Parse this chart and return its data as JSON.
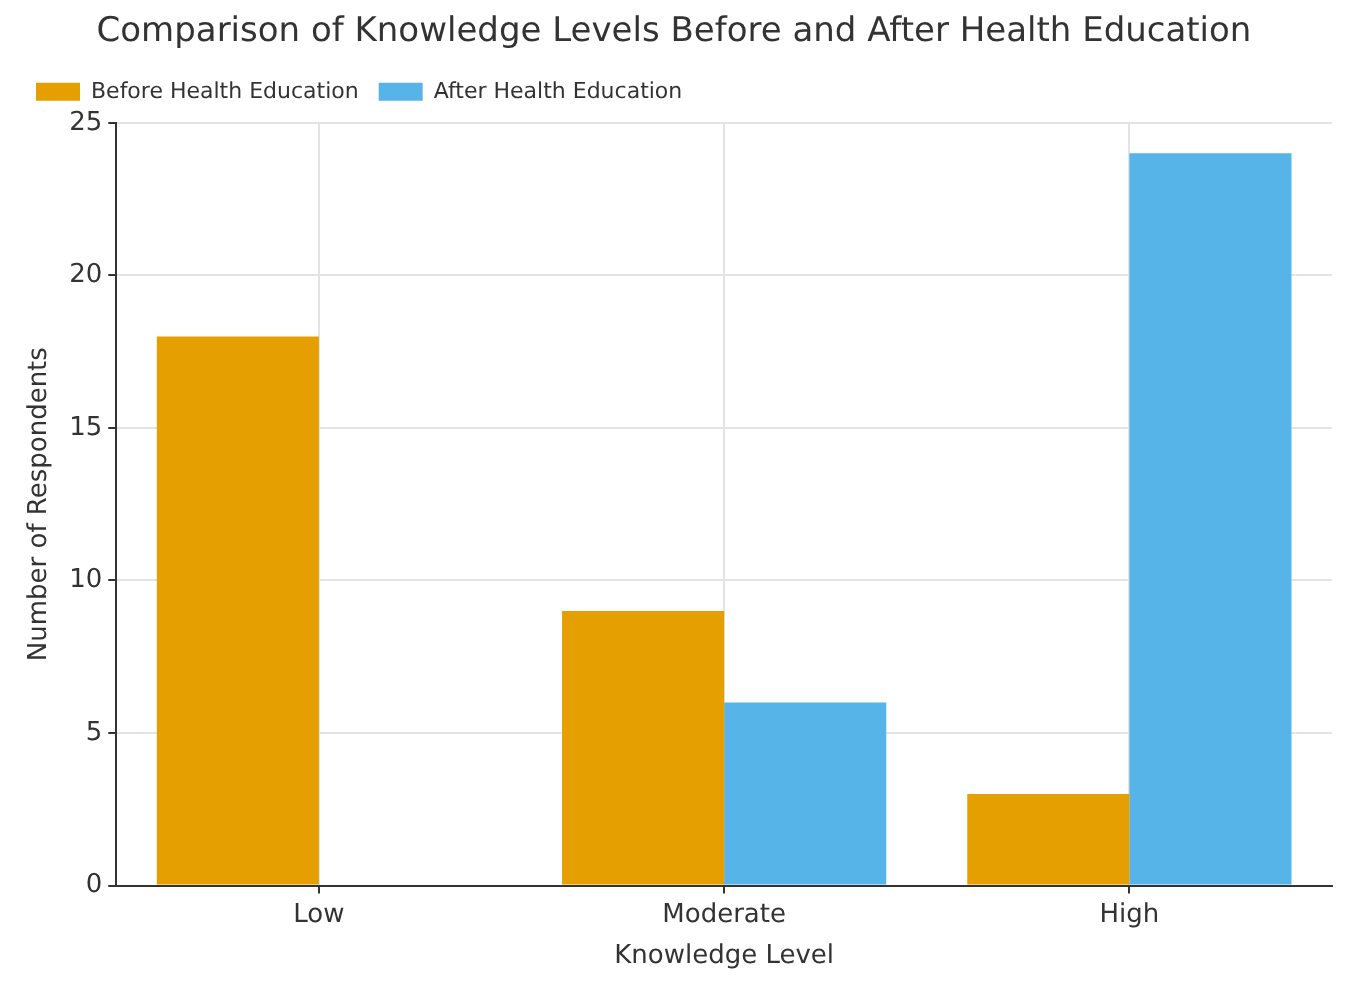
{
  "chart_data": {
    "type": "bar",
    "title": "Comparison of Knowledge Levels Before and After Health Education",
    "xlabel": "Knowledge Level",
    "ylabel": "Number of Respondents",
    "categories": [
      "Low",
      "Moderate",
      "High"
    ],
    "series": [
      {
        "name": "Before Health Education",
        "color": "#e69f00",
        "values": [
          18,
          9,
          3
        ]
      },
      {
        "name": "After Health Education",
        "color": "#56b4e9",
        "values": [
          0,
          6,
          24
        ]
      }
    ],
    "ylim": [
      0,
      25
    ],
    "yticks": [
      0,
      5,
      10,
      15,
      20,
      25
    ],
    "grid": true,
    "legend": "top left"
  }
}
